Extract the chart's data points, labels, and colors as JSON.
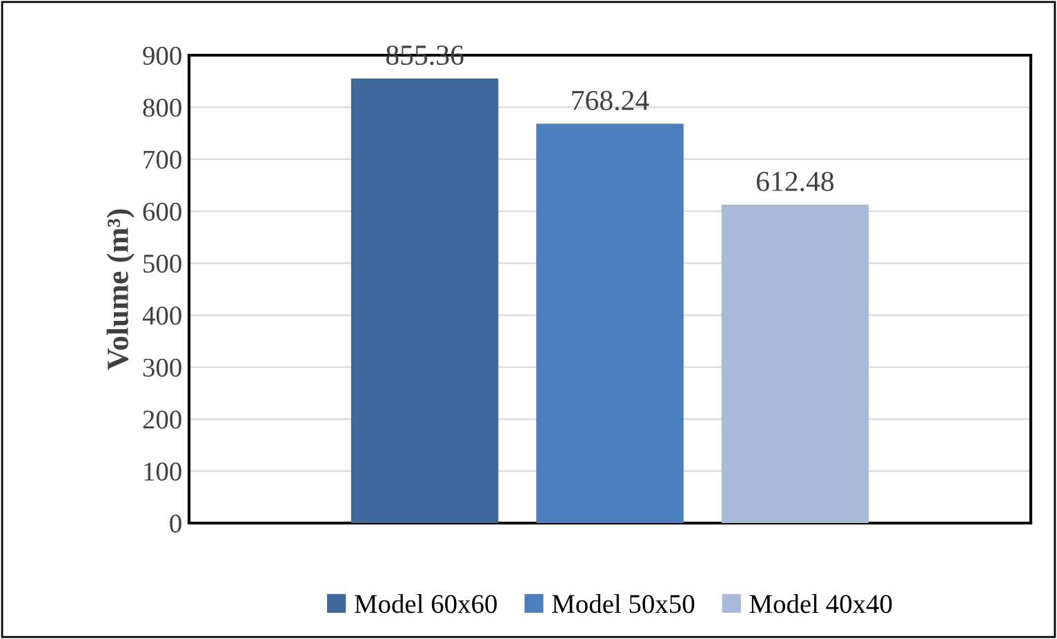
{
  "chart_data": {
    "type": "bar",
    "categories": [
      null
    ],
    "ylabel": "Volume (m³)",
    "series": [
      {
        "name": "Model 60x60",
        "color": "#41689a",
        "values": [
          855.36
        ]
      },
      {
        "name": "Model 50x50",
        "color": "#4b7fbd",
        "values": [
          768.24
        ]
      },
      {
        "name": "Model 40x40",
        "color": "#a9bad8",
        "values": [
          612.48
        ]
      }
    ],
    "ylim": [
      0,
      900
    ],
    "yticks": [
      0,
      100,
      200,
      300,
      400,
      500,
      600,
      700,
      800,
      900
    ],
    "grid": "y",
    "legend": "bottom",
    "data_labels": true
  }
}
